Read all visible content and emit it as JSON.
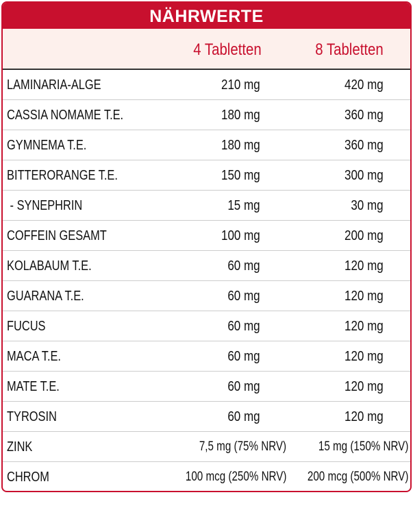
{
  "header": {
    "title": "NÄHRWERTE"
  },
  "table": {
    "columns": [
      "4 Tabletten",
      "8 Tabletten"
    ],
    "rows": [
      [
        "LAMINARIA-ALGE",
        "210 mg",
        "420 mg"
      ],
      [
        "CASSIA NOMAME T.E.",
        "180 mg",
        "360 mg"
      ],
      [
        "GYMNEMA T.E.",
        "180 mg",
        "360 mg"
      ],
      [
        "BITTERORANGE T.E.",
        "150 mg",
        "300 mg"
      ],
      [
        " - SYNEPHRIN",
        "15 mg",
        "30 mg"
      ],
      [
        "COFFEIN GESAMT",
        "100 mg",
        "200 mg"
      ],
      [
        "KOLABAUM T.E.",
        "60 mg",
        "120 mg"
      ],
      [
        "GUARANA T.E.",
        "60 mg",
        "120 mg"
      ],
      [
        "FUCUS",
        "60 mg",
        "120 mg"
      ],
      [
        "MACA T.E.",
        "60 mg",
        "120 mg"
      ],
      [
        "MATE T.E.",
        "60 mg",
        "120 mg"
      ],
      [
        "TYROSIN",
        "60 mg",
        "120 mg"
      ],
      [
        "ZINK",
        "7,5 mg (75% NRV)",
        "15 mg (150% NRV)"
      ],
      [
        "CHROM",
        "100 mcg (250% NRV)",
        "200 mcg (500% NRV)"
      ]
    ]
  }
}
